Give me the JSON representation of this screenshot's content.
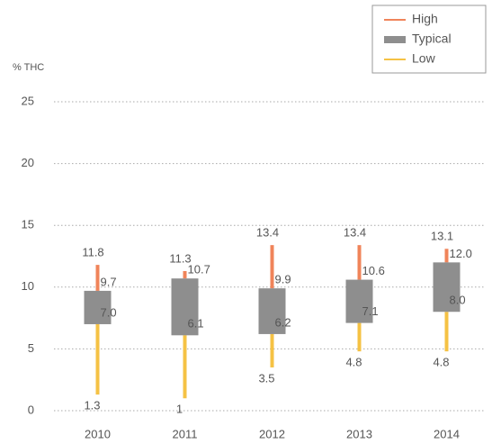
{
  "chart_data": {
    "type": "range",
    "ylabel": "% THC",
    "categories": [
      "2010",
      "2011",
      "2012",
      "2013",
      "2014"
    ],
    "series": [
      {
        "name": "High",
        "color": "#f0845a",
        "values": [
          11.8,
          11.3,
          13.4,
          13.4,
          13.1
        ]
      },
      {
        "name": "Typical",
        "color": "#8e8e8e",
        "values": [
          [
            7.0,
            9.7
          ],
          [
            6.1,
            10.7
          ],
          [
            6.2,
            9.9
          ],
          [
            7.1,
            10.6
          ],
          [
            8.0,
            12.0
          ]
        ],
        "value_labels": [
          [
            "7.0",
            "9.7"
          ],
          [
            "6.1",
            "10.7"
          ],
          [
            "6.2",
            "9.9"
          ],
          [
            "7.1",
            "10.6"
          ],
          [
            "8.0",
            "12.0"
          ]
        ]
      },
      {
        "name": "Low",
        "color": "#f5c244",
        "values": [
          1.3,
          1.0,
          3.5,
          4.8,
          4.8
        ]
      }
    ],
    "ylim": [
      0,
      25
    ],
    "yticks": [
      0,
      5,
      10,
      15,
      20,
      25
    ],
    "grid": true,
    "legend": "upper right"
  }
}
